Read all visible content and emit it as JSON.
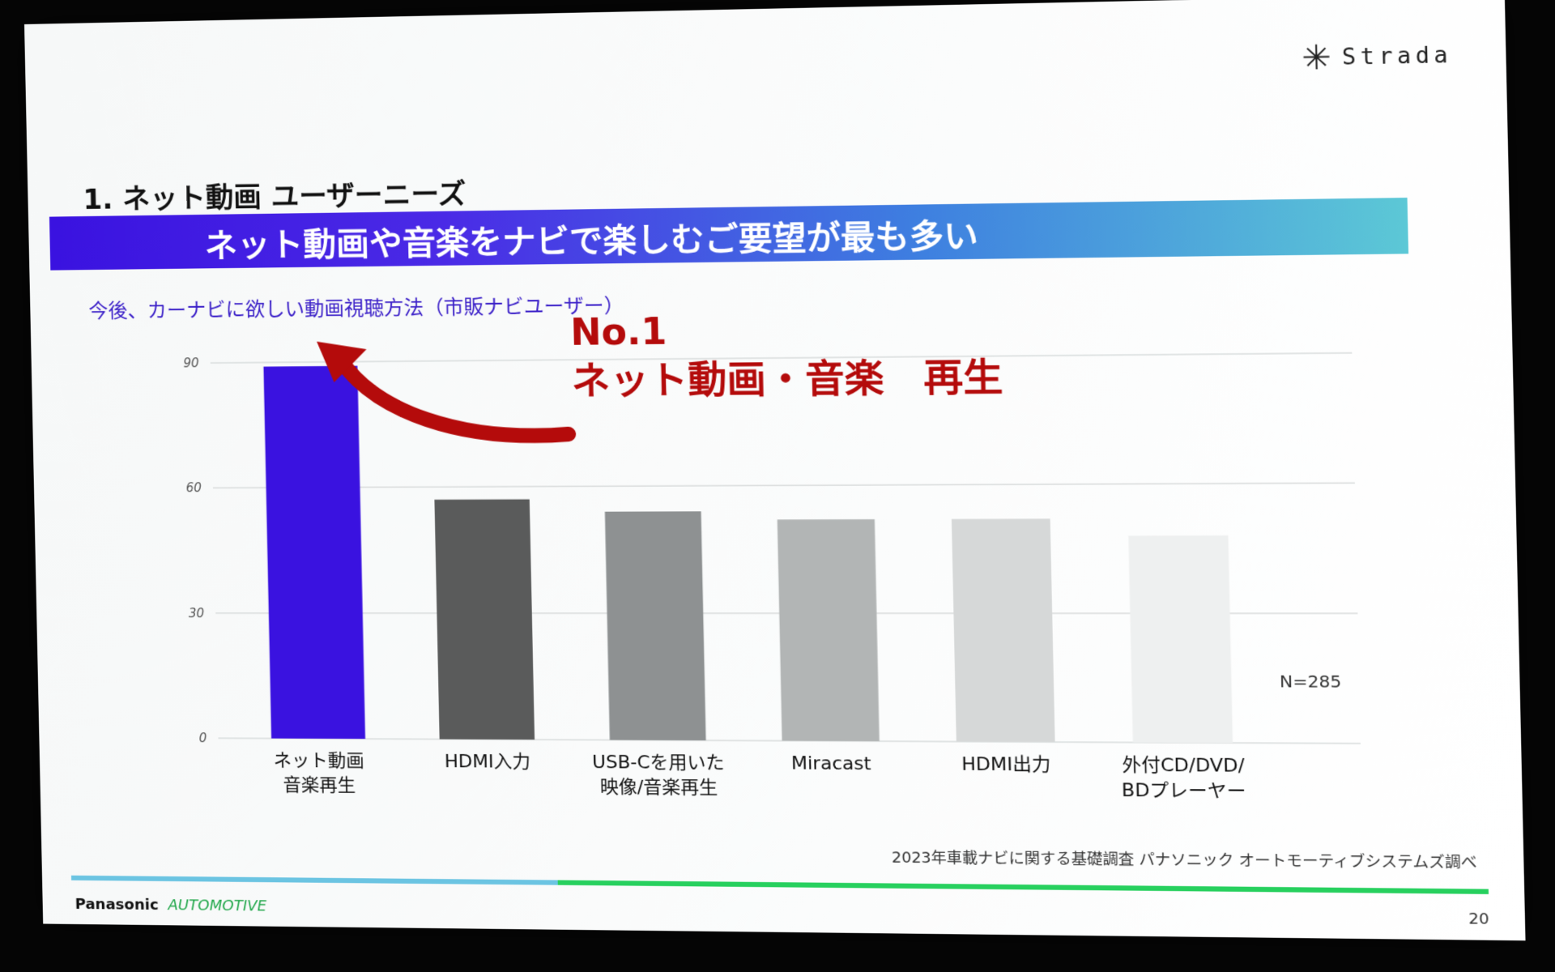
{
  "slide": {
    "brand": "Strada",
    "title": "1. ネット動画 ユーザーニーズ",
    "headline": "ネット動画や音楽をナビで楽しむご要望が最も多い",
    "subtitle": "今後、カーナビに欲しい動画視聴方法（市販ナビユーザー）",
    "callout_line1": "No.1",
    "callout_line2": "ネット動画・音楽　再生",
    "sample_size": "N=285",
    "source": "2023年車載ナビに関する基礎調査 パナソニック オートモーティブシステムズ調べ",
    "footer_brand": "Panasonic",
    "footer_division": "AUTOMOTIVE",
    "page_number": "20"
  },
  "colors": {
    "accent": "#3a12e0",
    "callout": "#b40b0b",
    "footer_green": "#27d05e",
    "footer_blue": "#6bc4e2"
  },
  "chart_data": {
    "type": "bar",
    "title": "今後、カーナビに欲しい動画視聴方法（市販ナビユーザー）",
    "categories": [
      "ネット動画\n音楽再生",
      "HDMI入力",
      "USB-Cを用いた\n映像/音楽再生",
      "Miracast",
      "HDMI出力",
      "外付CD/DVD/\nBDプレーヤー"
    ],
    "values": [
      89,
      57,
      54,
      52,
      52,
      48
    ],
    "bar_colors": [
      "#3a12e0",
      "#5a5b5b",
      "#8e9192",
      "#b2b5b5",
      "#d6d8d8",
      "#eef0f0"
    ],
    "yticks": [
      0,
      30,
      60,
      90
    ],
    "ylim": [
      0,
      90
    ],
    "grid": true,
    "xlabel": "",
    "ylabel": ""
  }
}
